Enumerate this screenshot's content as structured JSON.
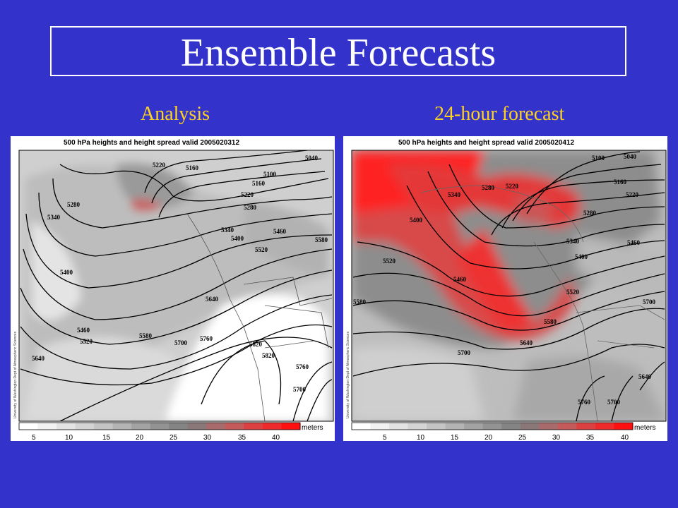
{
  "title": "Ensemble Forecasts",
  "panels": [
    {
      "label": "Analysis",
      "map_title": "500 hPa heights and height spread valid 2005020312",
      "credit": "University of Washington Dept of Atmospheric Sciences",
      "contour_labels": [
        "5220",
        "5160",
        "5040",
        "5100",
        "5160",
        "5280",
        "5220",
        "5280",
        "5340",
        "5340",
        "5400",
        "5460",
        "5520",
        "5580",
        "5400",
        "5640",
        "5460",
        "5520",
        "5580",
        "5700",
        "5760",
        "5820",
        "5820",
        "5760",
        "5700",
        "5640"
      ]
    },
    {
      "label": "24-hour forecast",
      "map_title": "500 hPa heights and height spread valid 2005020412",
      "credit": "University of Washington Dept of Atmospheric Sciences",
      "contour_labels": [
        "5100",
        "5040",
        "5220",
        "5280",
        "5340",
        "5400",
        "5160",
        "5220",
        "5280",
        "5340",
        "5400",
        "5460",
        "5520",
        "5460",
        "5520",
        "5580",
        "5580",
        "5640",
        "5700",
        "5700",
        "5640",
        "5760",
        "5700"
      ]
    }
  ],
  "colorbar": {
    "units": "meters",
    "ticks": [
      "5",
      "10",
      "15",
      "20",
      "25",
      "30",
      "35",
      "40"
    ],
    "colors": [
      "#ffffff",
      "#f2f2f2",
      "#e3e3e3",
      "#d4d4d4",
      "#c4c4c4",
      "#b4b4b4",
      "#a3a3a3",
      "#939393",
      "#848484",
      "#8a7878",
      "#a86a6a",
      "#c45a5a",
      "#dc4040",
      "#ef2a2a",
      "#ff1010"
    ]
  },
  "colors": {
    "background": "#3333cc",
    "title_text": "#ffffff",
    "panel_label": "#ffd21f",
    "spread_max": "#ff1010"
  }
}
